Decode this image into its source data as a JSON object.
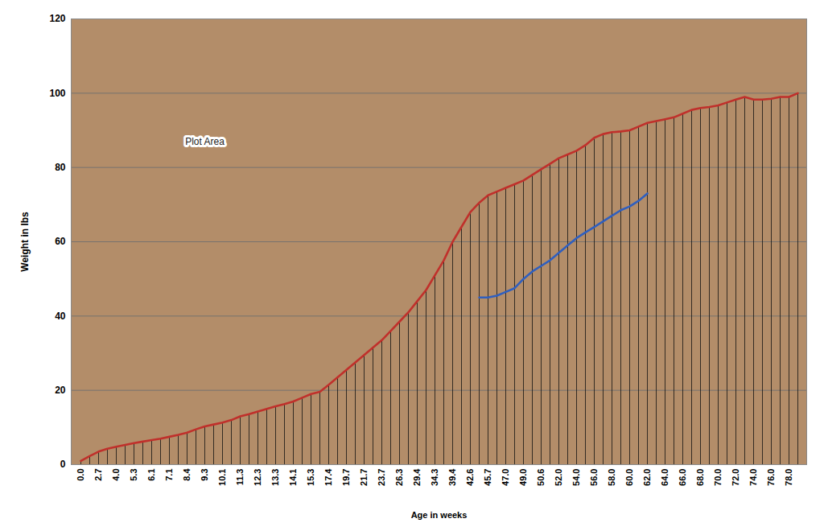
{
  "chart_data": {
    "type": "line",
    "x_label": "Age in weeks",
    "y_label": "Weight in lbs",
    "categories": [
      "0.0",
      null,
      "2.7",
      null,
      "4.0",
      null,
      "5.3",
      null,
      "6.1",
      null,
      "7.1",
      null,
      "8.4",
      null,
      "9.3",
      null,
      "10.1",
      null,
      "11.3",
      null,
      "12.3",
      null,
      "13.3",
      null,
      "14.1",
      null,
      "15.3",
      null,
      "17.4",
      null,
      "19.7",
      null,
      "21.7",
      null,
      "23.7",
      null,
      "26.3",
      null,
      "29.4",
      null,
      "34.3",
      null,
      "39.4",
      null,
      "42.6",
      null,
      "45.7",
      null,
      "47.0",
      null,
      "49.0",
      null,
      "50.6",
      null,
      "52.0",
      null,
      "54.0",
      null,
      "56.0",
      null,
      "58.0",
      null,
      "60.0",
      null,
      "62.0",
      null,
      "64.0",
      null,
      "66.0",
      null,
      "68.0",
      null,
      "70.0",
      null,
      "72.0",
      null,
      "74.0",
      null,
      "76.0",
      null,
      "78.0",
      null
    ],
    "series": [
      {
        "color": "#c0302b",
        "values": [
          1,
          2.3,
          3.5,
          4.3,
          4.8,
          5.3,
          5.8,
          6.2,
          6.6,
          7,
          7.5,
          8,
          8.6,
          9.5,
          10.3,
          10.8,
          11.3,
          12,
          13,
          13.6,
          14.3,
          15,
          15.7,
          16.3,
          17,
          18,
          19,
          19.6,
          21.5,
          23.5,
          25.5,
          27.5,
          29.5,
          31.5,
          33.5,
          36,
          38.5,
          41,
          44,
          47,
          51,
          55,
          60,
          64,
          68,
          70.5,
          72.5,
          73.5,
          74.5,
          75.5,
          76.5,
          78,
          79.5,
          81,
          82.5,
          83.5,
          84.5,
          86,
          88,
          89,
          89.5,
          89.7,
          90,
          91,
          92,
          92.5,
          93,
          93.5,
          94.5,
          95.5,
          96,
          96.3,
          96.7,
          97.5,
          98.3,
          99,
          98.3,
          98.3,
          98.5,
          99,
          99,
          100
        ]
      },
      {
        "color": "#2f5fbf",
        "values": [
          null,
          null,
          null,
          null,
          null,
          null,
          null,
          null,
          null,
          null,
          null,
          null,
          null,
          null,
          null,
          null,
          null,
          null,
          null,
          null,
          null,
          null,
          null,
          null,
          null,
          null,
          null,
          null,
          null,
          null,
          null,
          null,
          null,
          null,
          null,
          null,
          null,
          null,
          null,
          null,
          null,
          null,
          null,
          null,
          null,
          45,
          45,
          45.5,
          46.5,
          47.5,
          50,
          52,
          53.5,
          55,
          57,
          59,
          61,
          62.5,
          64,
          65.5,
          67,
          68.5,
          69.5,
          71,
          73,
          null,
          null,
          null,
          null,
          null,
          null,
          null,
          null,
          null,
          null,
          null,
          null,
          null,
          null,
          null,
          null,
          null
        ]
      }
    ],
    "ylim": [
      0,
      120
    ],
    "yticks": [
      0,
      20,
      40,
      60,
      80,
      100,
      120
    ],
    "grid": true,
    "annotations": [
      {
        "text": "Plot Area",
        "x": 14,
        "y": 87
      }
    ]
  }
}
